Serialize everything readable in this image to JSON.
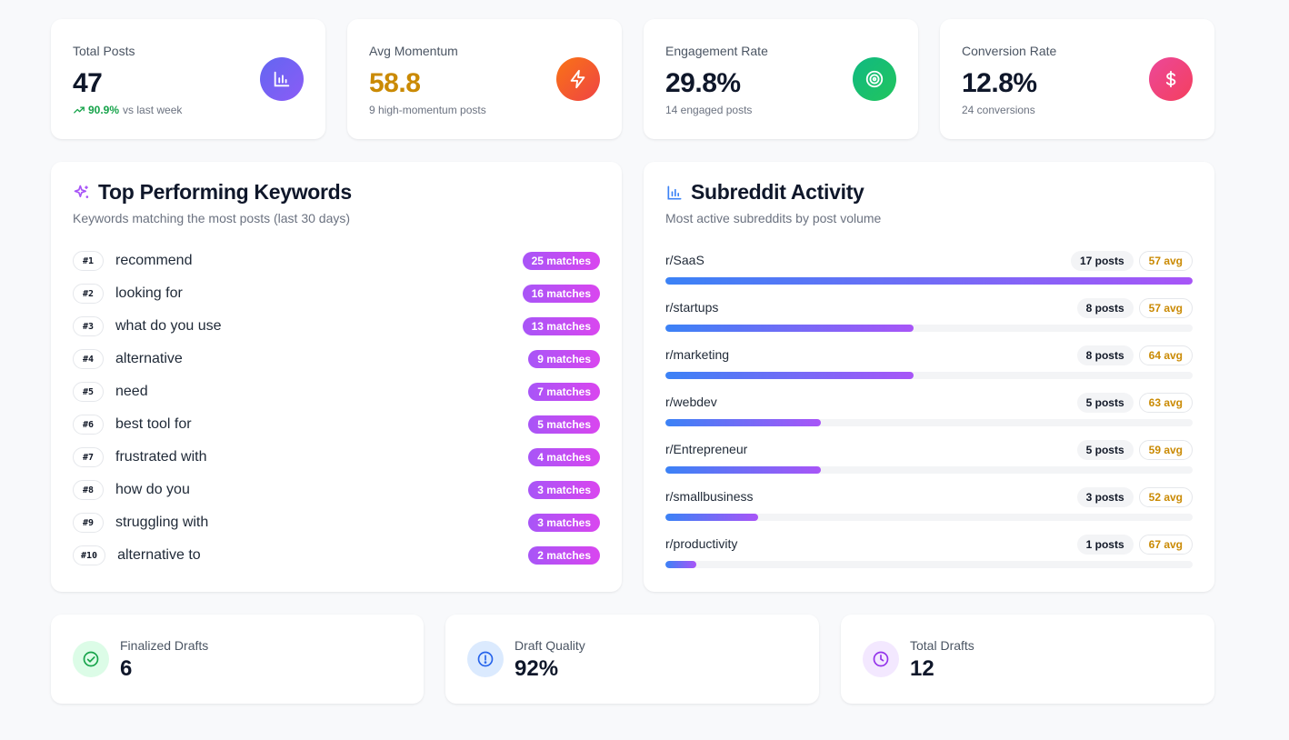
{
  "stats": [
    {
      "label": "Total Posts",
      "value": "47",
      "trend": "90.9%",
      "sub": "vs last week",
      "icon": "bar-chart-icon",
      "value_color": "#0f172a",
      "icon_bg": "#6366f1"
    },
    {
      "label": "Avg Momentum",
      "value": "58.8",
      "sub": "9 high-momentum posts",
      "icon": "lightning-icon",
      "value_color": "#ca8a04",
      "icon_bg": "#f97316"
    },
    {
      "label": "Engagement Rate",
      "value": "29.8%",
      "sub": "14 engaged posts",
      "icon": "target-icon",
      "value_color": "#0f172a",
      "icon_bg": "#10b981"
    },
    {
      "label": "Conversion Rate",
      "value": "12.8%",
      "sub": "24 conversions",
      "icon": "dollar-icon",
      "value_color": "#0f172a",
      "icon_bg": "#f43f5e"
    }
  ],
  "keywords": {
    "title": "Top Performing Keywords",
    "subtitle": "Keywords matching the most posts (last 30 days)",
    "items": [
      {
        "rank": "#1",
        "keyword": "recommend",
        "matches": "25 matches"
      },
      {
        "rank": "#2",
        "keyword": "looking for",
        "matches": "16 matches"
      },
      {
        "rank": "#3",
        "keyword": "what do you use",
        "matches": "13 matches"
      },
      {
        "rank": "#4",
        "keyword": "alternative",
        "matches": "9 matches"
      },
      {
        "rank": "#5",
        "keyword": "need",
        "matches": "7 matches"
      },
      {
        "rank": "#6",
        "keyword": "best tool for",
        "matches": "5 matches"
      },
      {
        "rank": "#7",
        "keyword": "frustrated with",
        "matches": "4 matches"
      },
      {
        "rank": "#8",
        "keyword": "how do you",
        "matches": "3 matches"
      },
      {
        "rank": "#9",
        "keyword": "struggling with",
        "matches": "3 matches"
      },
      {
        "rank": "#10",
        "keyword": "alternative to",
        "matches": "2 matches"
      }
    ]
  },
  "subreddits": {
    "title": "Subreddit Activity",
    "subtitle": "Most active subreddits by post volume",
    "items": [
      {
        "name": "r/SaaS",
        "posts": "17 posts",
        "avg": "57 avg",
        "share": 1.0
      },
      {
        "name": "r/startups",
        "posts": "8 posts",
        "avg": "57 avg",
        "share": 0.47
      },
      {
        "name": "r/marketing",
        "posts": "8 posts",
        "avg": "64 avg",
        "share": 0.47
      },
      {
        "name": "r/webdev",
        "posts": "5 posts",
        "avg": "63 avg",
        "share": 0.294
      },
      {
        "name": "r/Entrepreneur",
        "posts": "5 posts",
        "avg": "59 avg",
        "share": 0.294
      },
      {
        "name": "r/smallbusiness",
        "posts": "3 posts",
        "avg": "52 avg",
        "share": 0.176
      },
      {
        "name": "r/productivity",
        "posts": "1 posts",
        "avg": "67 avg",
        "share": 0.059
      }
    ]
  },
  "drafts": [
    {
      "label": "Finalized Drafts",
      "value": "6",
      "icon": "check-circle-icon",
      "icon_bg": "#dcfce7",
      "icon_color": "#16a34a"
    },
    {
      "label": "Draft Quality",
      "value": "92%",
      "icon": "alert-circle-icon",
      "icon_bg": "#dbeafe",
      "icon_color": "#2563eb"
    },
    {
      "label": "Total Drafts",
      "value": "12",
      "icon": "clock-icon",
      "icon_bg": "#f3e8ff",
      "icon_color": "#9333ea"
    }
  ]
}
